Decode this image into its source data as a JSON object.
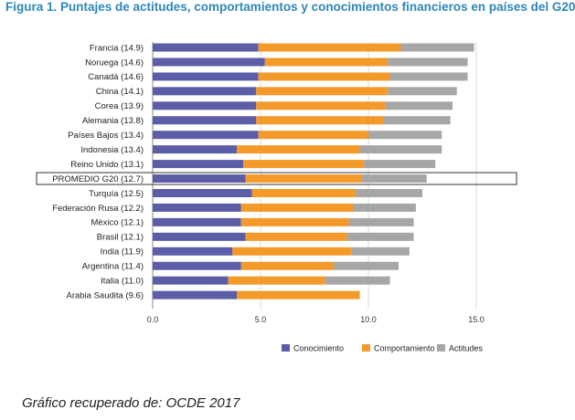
{
  "title": "Figura 1. Puntajes de actitudes, comportamientos y conocimientos financieros en países del G20",
  "caption": "Gráfico recuperado de: OCDE 2017",
  "chart_data": {
    "type": "bar",
    "orientation": "horizontal",
    "stacked": true,
    "categories": [
      "Francia (14.9)",
      "Noruega (14.6)",
      "Canadá (14.6)",
      "China (14.1)",
      "Corea (13.9)",
      "Alemania (13.8)",
      "Países Bajos (13.4)",
      "Indonesia (13.4)",
      "Reino Unido (13.1)",
      "PROMEDIO G20 (12.7)",
      "Turquía (12.5)",
      "Federación Rusa (12.2)",
      "México (12.1)",
      "Brasil (12.1)",
      "India (11.9)",
      "Argentina (11.4)",
      "Italia (11.0)",
      "Arabia Saudita (9.6)"
    ],
    "series": [
      {
        "name": "Conocimiento",
        "color": "#5b5ea6",
        "values": [
          4.9,
          5.2,
          4.9,
          4.8,
          4.8,
          4.8,
          4.9,
          3.9,
          4.2,
          4.3,
          4.6,
          4.1,
          4.1,
          4.3,
          3.7,
          4.1,
          3.5,
          3.9
        ]
      },
      {
        "name": "Comportamiento",
        "color": "#f39a2b",
        "values": [
          6.6,
          5.7,
          6.1,
          6.1,
          6.0,
          5.9,
          5.1,
          5.7,
          5.6,
          5.4,
          4.8,
          5.2,
          5.0,
          4.7,
          5.5,
          4.3,
          4.5,
          5.7
        ]
      },
      {
        "name": "Actitudes",
        "color": "#a6a6a6",
        "values": [
          3.4,
          3.7,
          3.6,
          3.2,
          3.1,
          3.1,
          3.4,
          3.8,
          3.3,
          3.0,
          3.1,
          2.9,
          3.0,
          3.1,
          2.7,
          3.0,
          3.0,
          0.0
        ]
      }
    ],
    "highlighted_category": "PROMEDIO G20 (12.7)",
    "xticks": [
      "0.0",
      "5.0",
      "10.0",
      "15.0"
    ],
    "xlim": [
      0,
      16
    ],
    "grid": true,
    "legend_position": "bottom"
  }
}
